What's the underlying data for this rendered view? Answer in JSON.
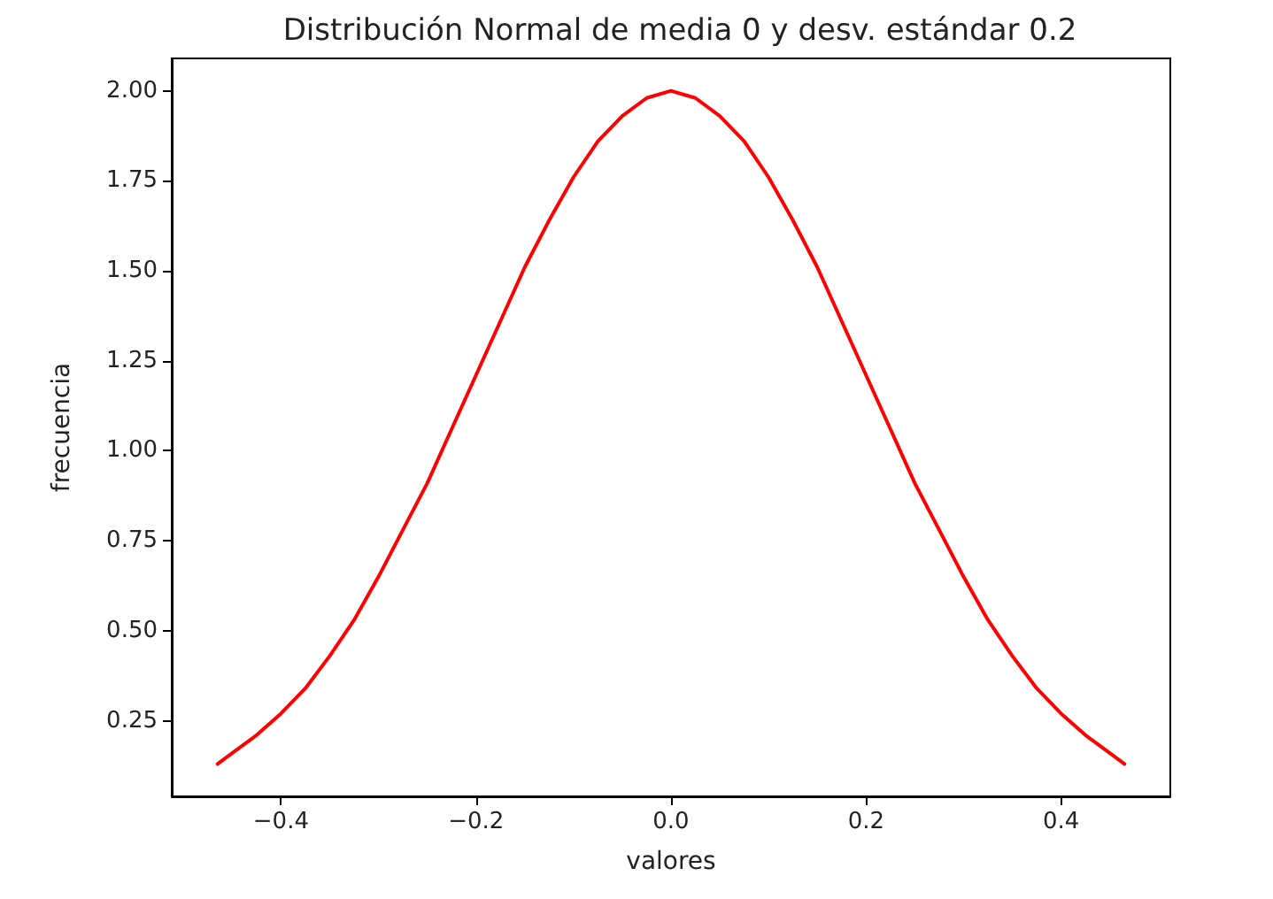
{
  "chart_data": {
    "type": "line",
    "title": "Distribución Normal de media 0 y desv. estándar 0.2",
    "xlabel": "valores",
    "ylabel": "frecuencia",
    "x": [
      -0.465,
      -0.45,
      -0.425,
      -0.4,
      -0.375,
      -0.35,
      -0.325,
      -0.3,
      -0.275,
      -0.25,
      -0.225,
      -0.2,
      -0.175,
      -0.15,
      -0.125,
      -0.1,
      -0.075,
      -0.05,
      -0.025,
      0,
      0.025,
      0.05,
      0.075,
      0.1,
      0.125,
      0.15,
      0.175,
      0.2,
      0.225,
      0.25,
      0.275,
      0.3,
      0.325,
      0.35,
      0.375,
      0.4,
      0.425,
      0.45,
      0.465
    ],
    "series": [
      {
        "color": "#ff0000",
        "values": [
          0.13,
          0.16,
          0.21,
          0.27,
          0.34,
          0.43,
          0.53,
          0.65,
          0.78,
          0.91,
          1.06,
          1.21,
          1.36,
          1.51,
          1.64,
          1.76,
          1.86,
          1.93,
          1.98,
          2.0,
          1.98,
          1.93,
          1.86,
          1.76,
          1.64,
          1.51,
          1.36,
          1.21,
          1.06,
          0.91,
          0.78,
          0.65,
          0.53,
          0.43,
          0.34,
          0.27,
          0.21,
          0.16,
          0.13
        ]
      }
    ],
    "xlim": [
      -0.512,
      0.512
    ],
    "ylim": [
      0.04,
      2.09
    ],
    "xticks": [
      {
        "value": -0.4,
        "label": "−0.4"
      },
      {
        "value": -0.2,
        "label": "−0.2"
      },
      {
        "value": 0,
        "label": "0.0"
      },
      0.2,
      0.4
    ],
    "yticks": [
      {
        "value": 0.25,
        "label": "0.25"
      },
      {
        "value": 0.5,
        "label": "0.50"
      },
      {
        "value": 0.75,
        "label": "0.75"
      },
      {
        "value": 1,
        "label": "1.00"
      },
      {
        "value": 1.25,
        "label": "1.25"
      },
      {
        "value": 1.5,
        "label": "1.50"
      },
      {
        "value": 1.75,
        "label": "1.75"
      },
      {
        "value": 2,
        "label": "2.00"
      }
    ],
    "grid": false,
    "marker": "none",
    "line_style": "solid"
  }
}
